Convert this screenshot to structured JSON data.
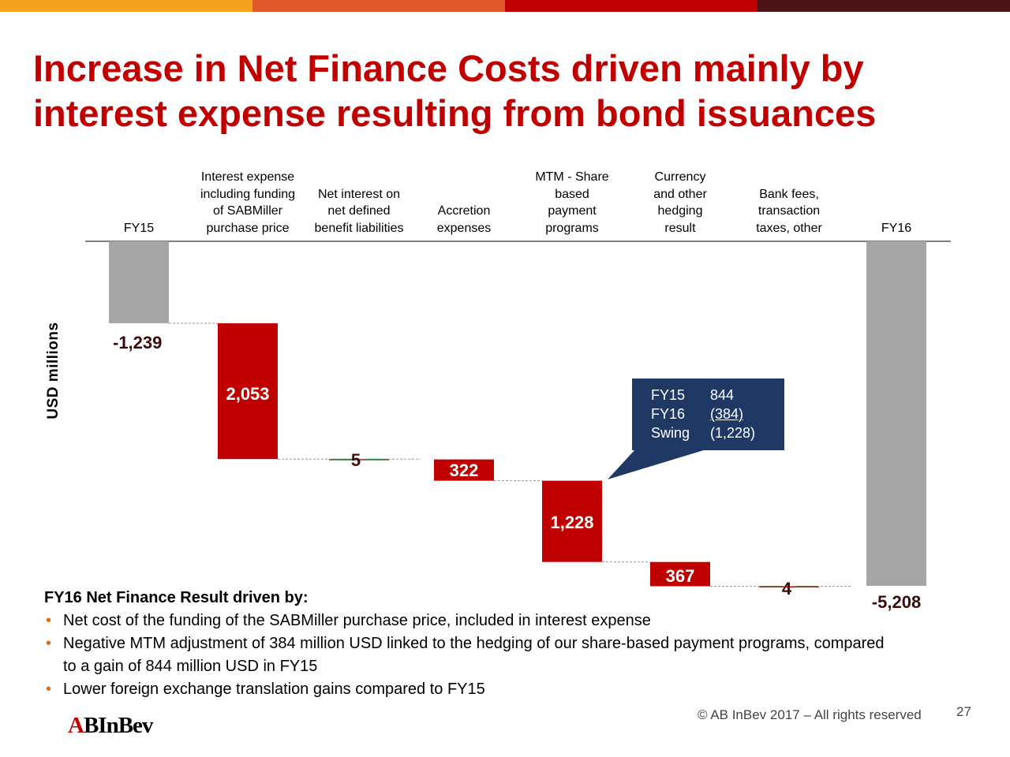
{
  "colors": {
    "topbar": [
      "#f4a21e",
      "#e0592a",
      "#c00000",
      "#4a1416"
    ],
    "title": "#c00000",
    "total_bar": "#a6a6a6",
    "delta_bar": "#c00000",
    "callout": "#1f3864",
    "connector_small": "#2e7d32"
  },
  "title": {
    "line1": "Increase in Net Finance Costs driven mainly by",
    "line2": "interest expense resulting from bond issuances"
  },
  "chart_data": {
    "type": "waterfall",
    "ylabel": "USD millions",
    "unit": "USD millions",
    "categories": [
      [
        "FY15"
      ],
      [
        "Interest expense",
        "including funding",
        "of SABMiller",
        "purchase price"
      ],
      [
        "Net interest on",
        "net defined",
        "benefit liabilities"
      ],
      [
        "Accretion",
        "expenses"
      ],
      [
        "MTM - Share",
        "based",
        "payment",
        "programs"
      ],
      [
        "Currency",
        "and other",
        "hedging",
        "result"
      ],
      [
        "Bank fees,",
        "transaction",
        "taxes, other"
      ],
      [
        "FY16"
      ]
    ],
    "bars": [
      {
        "kind": "total",
        "value": -1239,
        "label": "-1,239"
      },
      {
        "kind": "delta",
        "value": 2053,
        "label": "2,053"
      },
      {
        "kind": "delta",
        "value": 5,
        "label": "5"
      },
      {
        "kind": "delta",
        "value": 322,
        "label": "322"
      },
      {
        "kind": "delta",
        "value": 1228,
        "label": "1,228"
      },
      {
        "kind": "delta",
        "value": 367,
        "label": "367"
      },
      {
        "kind": "delta",
        "value": 4,
        "label": "4"
      },
      {
        "kind": "total",
        "value": -5208,
        "label": "-5,208"
      }
    ],
    "ylim": [
      -5208,
      0
    ],
    "grid": false,
    "legend": "none"
  },
  "callout": {
    "rows": [
      {
        "key": "FY15",
        "value": "844"
      },
      {
        "key": "FY16",
        "value": "(384)"
      },
      {
        "key": "Swing",
        "value": "(1,228)"
      }
    ]
  },
  "drivers": {
    "heading": "FY16 Net Finance Result driven by:",
    "bullet": "•",
    "items": [
      "Net cost of the funding of the SABMiller purchase price, included in interest expense",
      "Negative MTM adjustment of 384 million USD linked to the hedging of our share-based payment programs, compared to a gain of 844 million USD in FY15",
      "Lower foreign exchange translation gains compared to FY15"
    ]
  },
  "footer": {
    "copyright": "© AB InBev 2017 – All rights reserved",
    "page": "27",
    "logo_a": "A",
    "logo_b": "B",
    "logo_rest": "InBev"
  }
}
